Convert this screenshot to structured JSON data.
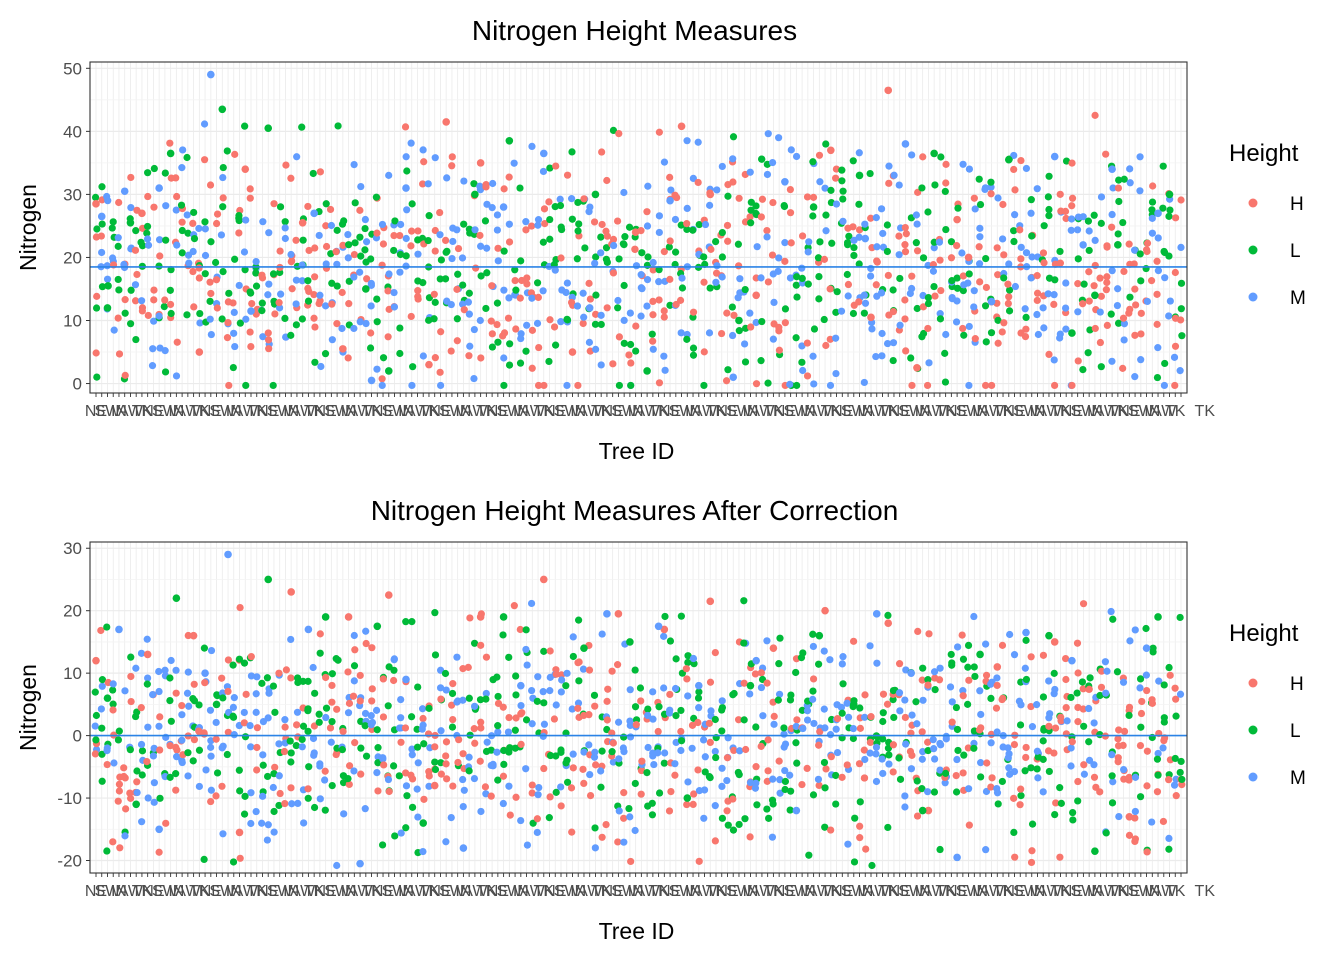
{
  "chart_data": [
    {
      "type": "scatter",
      "title": "Nitrogen Height Measures",
      "xlabel": "Tree ID",
      "ylabel": "Nitrogen",
      "ylim": [
        -1.5,
        51
      ],
      "yticks": [
        0,
        10,
        20,
        30,
        40,
        50
      ],
      "hline": 18.5,
      "x_tick_label_sample": [
        "IN",
        "NE",
        "AW",
        "SW",
        "TK"
      ],
      "legend": {
        "title": "Height",
        "entries": [
          "H",
          "L",
          "M"
        ],
        "position": "right"
      },
      "series": [
        {
          "name": "H",
          "color": "#F8766D",
          "x": [
            1,
            9,
            19,
            27,
            37,
            44,
            59,
            62,
            68,
            84,
            95,
            103,
            108,
            116,
            129,
            136,
            139,
            144,
            151,
            153
          ],
          "y": [
            28.5,
            27.0,
            5.0,
            34.0,
            25.5,
            5.5,
            3.0,
            41.5,
            35.0,
            5.0,
            24.0,
            40.8,
            30.0,
            14.0,
            37.0,
            10.5,
            46.5,
            2.5,
            26.0,
            20.0
          ]
        },
        {
          "name": "L",
          "color": "#00BA38",
          "x": [
            3,
            7,
            14,
            23,
            31,
            48,
            52,
            67,
            73,
            88,
            97,
            113,
            126,
            134,
            147,
            160,
            171,
            175,
            179,
            188
          ],
          "y": [
            12.0,
            25.5,
            36.5,
            43.5,
            40.5,
            15.0,
            2.0,
            30.0,
            38.5,
            30.0,
            2.0,
            10.0,
            28.0,
            33.0,
            36.5,
            35.5,
            8.0,
            14.0,
            22.0,
            30.0
          ]
        },
        {
          "name": "M",
          "color": "#619CFF",
          "x": [
            2,
            6,
            12,
            21,
            28,
            39,
            49,
            55,
            72,
            79,
            87,
            101,
            112,
            121,
            135,
            142,
            157,
            168,
            178,
            186
          ],
          "y": [
            26.5,
            30.5,
            31.0,
            49.0,
            11.5,
            27.0,
            0.5,
            31.0,
            28.0,
            36.5,
            12.0,
            29.0,
            1.0,
            32.0,
            23.0,
            38.0,
            13.0,
            36.0,
            34.0,
            27.0
          ]
        }
      ]
    },
    {
      "type": "scatter",
      "title": "Nitrogen Height Measures After Correction",
      "xlabel": "Tree ID",
      "ylabel": "Nitrogen",
      "ylim": [
        -22,
        31
      ],
      "yticks": [
        -20,
        -10,
        0,
        10,
        20,
        30
      ],
      "hline": 0,
      "x_tick_label_sample": [
        "IN",
        "NE",
        "AW",
        "SW",
        "TK"
      ],
      "legend": {
        "title": "Height",
        "entries": [
          "H",
          "L",
          "M"
        ],
        "position": "right"
      },
      "series": [
        {
          "name": "H",
          "color": "#F8766D",
          "x": [
            1,
            10,
            18,
            26,
            35,
            45,
            52,
            60,
            68,
            79,
            92,
            100,
            108,
            119,
            128,
            139,
            146,
            158,
            168,
            181
          ],
          "y": [
            12.0,
            13.0,
            16.0,
            -15.5,
            23.0,
            19.0,
            22.5,
            -8.0,
            19.0,
            25.0,
            19.5,
            17.0,
            21.5,
            14.0,
            20.0,
            18.0,
            -12.0,
            11.0,
            15.0,
            -13.0
          ]
        },
        {
          "name": "L",
          "color": "#00BA38",
          "x": [
            3,
            8,
            15,
            22,
            31,
            41,
            50,
            58,
            72,
            86,
            94,
            104,
            115,
            127,
            133,
            145,
            155,
            167,
            175,
            186
          ],
          "y": [
            6.0,
            -11.0,
            22.0,
            5.0,
            25.0,
            19.0,
            17.5,
            -14.0,
            19.0,
            14.0,
            15.0,
            -10.0,
            8.0,
            16.0,
            5.0,
            -12.0,
            13.0,
            16.0,
            -18.5,
            19.0
          ]
        },
        {
          "name": "M",
          "color": "#619CFF",
          "x": [
            5,
            12,
            20,
            24,
            38,
            47,
            55,
            65,
            75,
            90,
            99,
            106,
            116,
            123,
            137,
            143,
            151,
            163,
            171,
            184
          ],
          "y": [
            17.0,
            -15.0,
            10.0,
            29.0,
            17.0,
            -20.5,
            9.0,
            -18.0,
            8.0,
            19.5,
            17.5,
            8.0,
            12.0,
            -12.0,
            19.5,
            10.0,
            -19.5,
            16.5,
            12.0,
            14.0
          ]
        }
      ]
    }
  ]
}
